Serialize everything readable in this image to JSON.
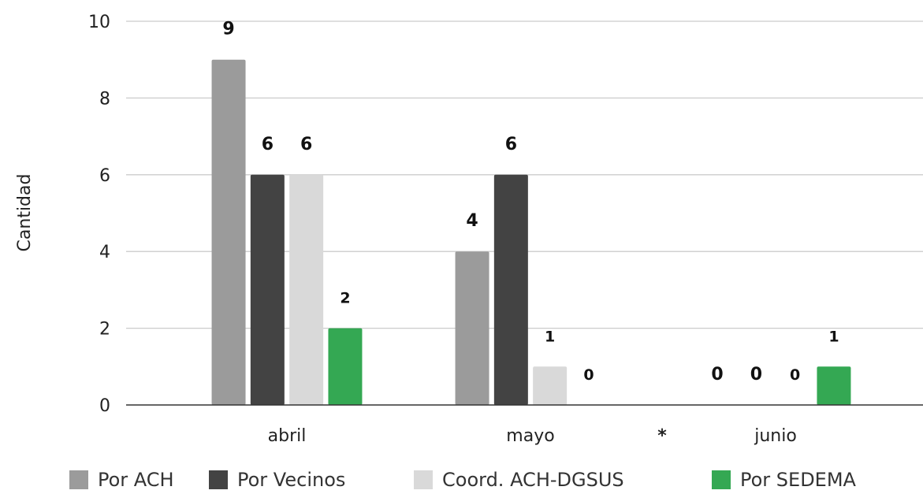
{
  "chart_data": {
    "type": "bar",
    "categories": [
      "abril",
      "mayo",
      "junio"
    ],
    "series": [
      {
        "name": "Por ACH",
        "color": "#9b9b9b",
        "values": [
          9,
          4,
          0
        ]
      },
      {
        "name": "Por Vecinos",
        "color": "#434343",
        "values": [
          6,
          6,
          0
        ]
      },
      {
        "name": "Coord. ACH-DGSUS",
        "color": "#d9d9d9",
        "values": [
          6,
          1,
          0
        ]
      },
      {
        "name": "Por SEDEMA",
        "color": "#34a853",
        "values": [
          2,
          0,
          1
        ]
      }
    ],
    "data_labels": [
      [
        "9",
        "4",
        "0"
      ],
      [
        "6",
        "6",
        "0"
      ],
      [
        "6",
        "1",
        "0"
      ],
      [
        "2",
        "0",
        "1"
      ]
    ],
    "ylabel": "Cantidad",
    "ylim": [
      0,
      10
    ],
    "yticks": [
      0,
      2,
      4,
      6,
      8,
      10
    ],
    "grid": true,
    "legend": "bottom",
    "annotation": {
      "text": "*",
      "color": "#3a8f4e"
    }
  }
}
